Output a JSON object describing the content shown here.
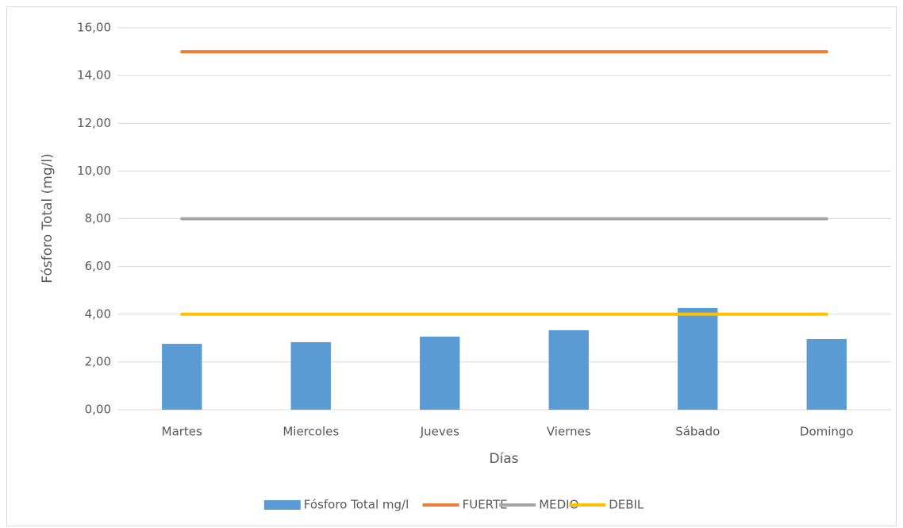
{
  "chart_data": {
    "type": "bar",
    "y_label": "Fósforo Total (mg/l)",
    "x_label": "Días",
    "categories": [
      "Martes",
      "Miercoles",
      "Jueves",
      "Viernes",
      "Sábado",
      "Domingo"
    ],
    "series": [
      {
        "name": "Fósforo Total mg/l",
        "type": "bar",
        "color": "#5b9bd5",
        "values": [
          2.76,
          2.83,
          3.06,
          3.33,
          4.26,
          2.96
        ]
      },
      {
        "name": "FUERTE",
        "type": "line",
        "color": "#ed7d31",
        "values": [
          15,
          15,
          15,
          15,
          15,
          15
        ]
      },
      {
        "name": "MEDIO",
        "type": "line",
        "color": "#a5a5a5",
        "values": [
          8,
          8,
          8,
          8,
          8,
          8
        ]
      },
      {
        "name": "DEBIL",
        "type": "line",
        "color": "#ffc000",
        "values": [
          4,
          4,
          4,
          4,
          4,
          4
        ]
      }
    ],
    "ylim": [
      0,
      16
    ],
    "yticks": [
      {
        "value": 0,
        "label": "0,00"
      },
      {
        "value": 2,
        "label": "2,00"
      },
      {
        "value": 4,
        "label": "4,00"
      },
      {
        "value": 6,
        "label": "6,00"
      },
      {
        "value": 8,
        "label": "8,00"
      },
      {
        "value": 10,
        "label": "10,00"
      },
      {
        "value": 12,
        "label": "12,00"
      },
      {
        "value": 14,
        "label": "14,00"
      },
      {
        "value": 16,
        "label": "16,00"
      }
    ],
    "grid": true,
    "legend": "bottom"
  }
}
